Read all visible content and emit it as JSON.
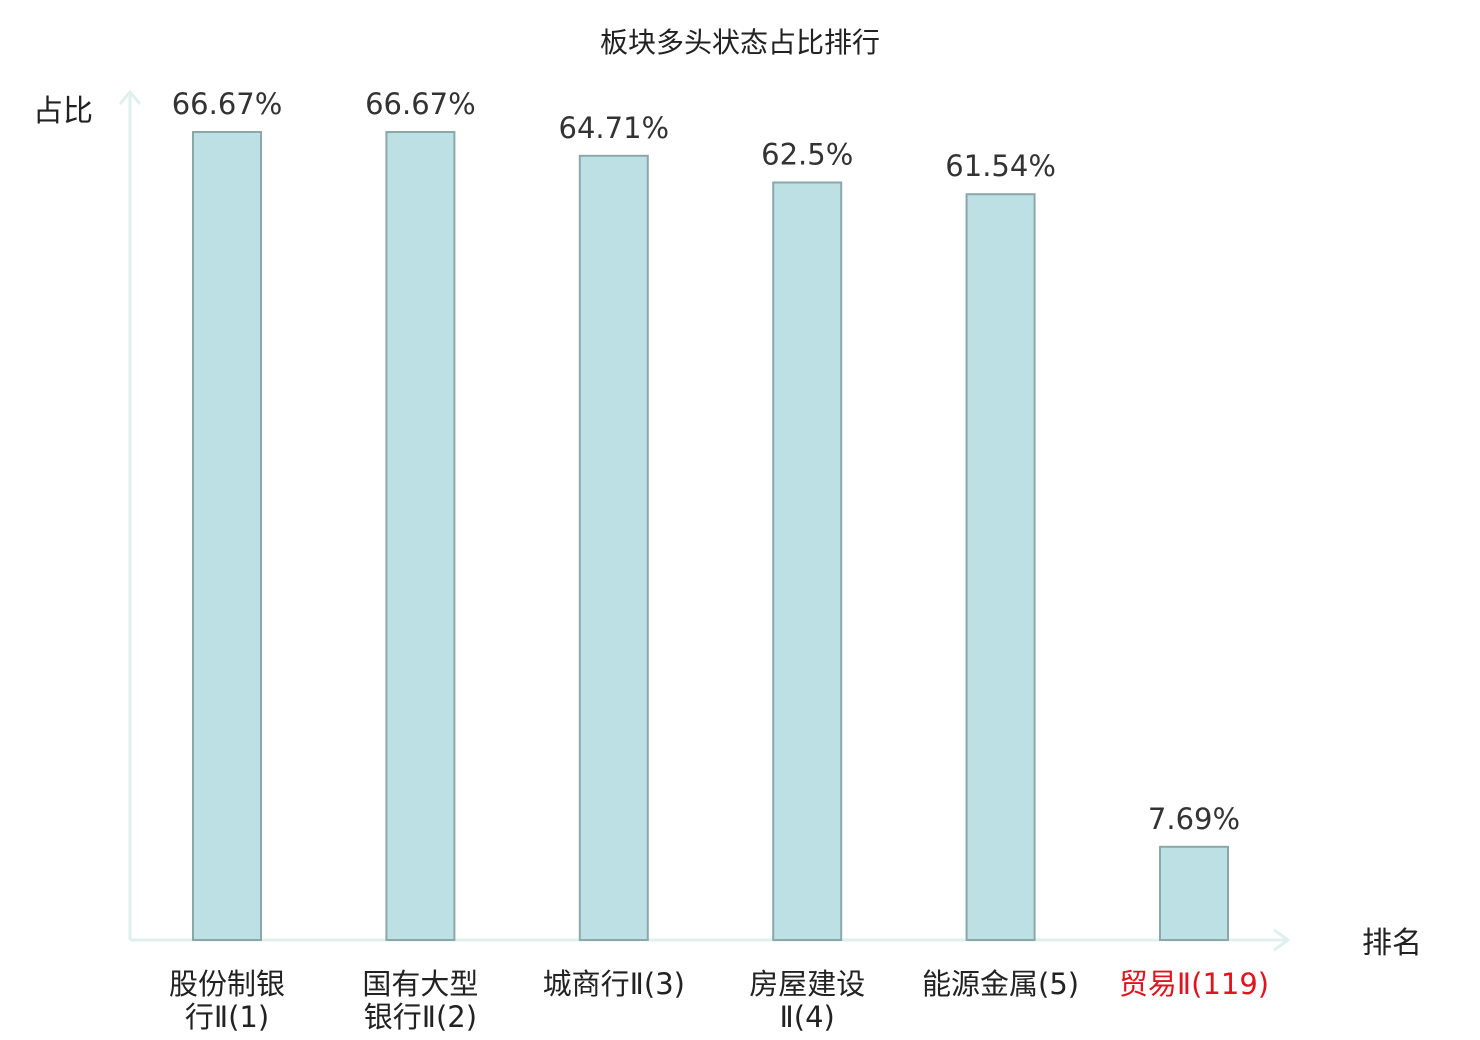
{
  "chart_data": {
    "type": "bar",
    "title": "板块多头状态占比排行",
    "ylabel": "占比",
    "xlabel": "排名",
    "categories": [
      [
        "股份制银",
        "行Ⅱ(1)"
      ],
      [
        "国有大型",
        "银行Ⅱ(2)"
      ],
      [
        "城商行Ⅱ(3)"
      ],
      [
        "房屋建设",
        "Ⅱ(4)"
      ],
      [
        "能源金属(5)"
      ],
      [
        "贸易Ⅱ(119)"
      ]
    ],
    "values": [
      66.67,
      66.67,
      64.71,
      62.5,
      61.54,
      7.69
    ],
    "value_labels": [
      "66.67%",
      "66.67%",
      "64.71%",
      "62.5%",
      "61.54%",
      "7.69%"
    ],
    "highlight_index": 5,
    "ylim": [
      0,
      70
    ],
    "grid": false,
    "colors": {
      "bar_fill": "#bce0e3",
      "bar_stroke": "#8aa8aa",
      "axis": "#dff1ee",
      "highlight_text": "#e0141e",
      "text": "#222222"
    }
  }
}
